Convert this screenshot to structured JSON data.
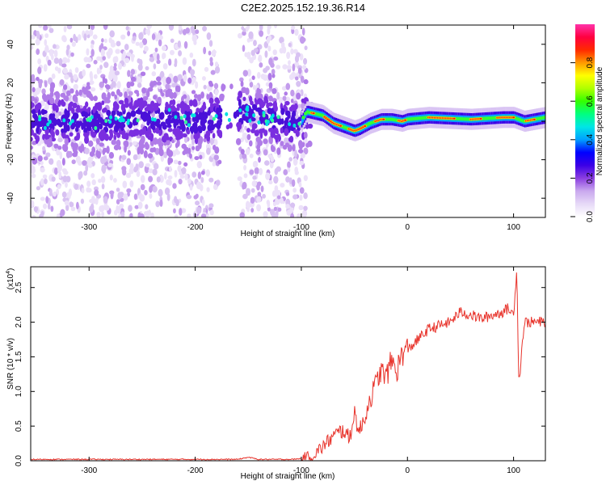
{
  "title": "C2E2.2025.152.19.36.R14",
  "chart_data": [
    {
      "type": "heatmap",
      "xlabel": "Height of straight line (km)",
      "ylabel": "Frequency (Hz)",
      "xlim": [
        -355,
        130
      ],
      "ylim": [
        -50,
        50
      ],
      "xticks": [
        -300,
        -200,
        -100,
        0,
        100
      ],
      "yticks": [
        -40,
        -20,
        0,
        20,
        40
      ],
      "colorbar": {
        "label": "Normalized spectral amplitude",
        "range": [
          0,
          1
        ],
        "ticks": [
          "0.0",
          "0.2",
          "0.4",
          "0.6",
          "0.8"
        ],
        "tick_values": [
          0.0,
          0.2,
          0.4,
          0.6,
          0.8
        ],
        "colors": [
          "#ffffff",
          "#e6d9f7",
          "#c9a8ee",
          "#8b3ee0",
          "#3b00e6",
          "#0000ff",
          "#00a0ff",
          "#00e6e6",
          "#00ff80",
          "#33ff00",
          "#b0ff00",
          "#ffff00",
          "#ff9900",
          "#ff2a00",
          "#ff0040",
          "#ff33aa"
        ]
      },
      "ridge": {
        "x": [
          -355,
          -300,
          -250,
          -200,
          -170,
          -160,
          -130,
          -100,
          -95,
          -80,
          -70,
          -60,
          -50,
          -45,
          -35,
          -25,
          -15,
          -5,
          0,
          20,
          60,
          90,
          100,
          110,
          130
        ],
        "freq": [
          0,
          0,
          1,
          0,
          2,
          5,
          1,
          0,
          5,
          3,
          -1,
          -3,
          -5,
          -4,
          -1,
          1,
          1,
          0,
          1,
          2,
          1,
          2,
          2,
          0,
          2
        ]
      }
    },
    {
      "type": "line",
      "xlabel": "Height of straight line (km)",
      "ylabel": "SNR (10 * v/v)",
      "scale_note": "(x10",
      "scale_exp": "4",
      "xlim": [
        -355,
        130
      ],
      "ylim": [
        0,
        2.8
      ],
      "xticks": [
        -300,
        -200,
        -100,
        0,
        100
      ],
      "yticks": [
        0.0,
        0.5,
        1.0,
        1.5,
        2.0,
        2.5
      ],
      "ytick_labels": [
        "0.0",
        "0.5",
        "1.0",
        "1.5",
        "2.0",
        "2.5"
      ],
      "color": "#e8342c",
      "series": [
        {
          "x": [
            -355,
            -300,
            -200,
            -160,
            -150,
            -140,
            -110,
            -100,
            -90,
            -80,
            -70,
            -60,
            -55,
            -50,
            -45,
            -40,
            -35,
            -30,
            -25,
            -20,
            -15,
            -10,
            -5,
            0,
            10,
            20,
            30,
            40,
            50,
            60,
            70,
            80,
            90,
            95,
            100,
            103,
            105,
            110,
            120,
            130
          ],
          "y": [
            0.02,
            0.02,
            0.02,
            0.02,
            0.05,
            0.02,
            0.02,
            0.03,
            0.06,
            0.2,
            0.35,
            0.45,
            0.3,
            0.7,
            0.4,
            0.65,
            0.9,
            1.1,
            1.3,
            1.2,
            1.45,
            1.3,
            1.55,
            1.6,
            1.75,
            1.9,
            1.95,
            2.0,
            2.15,
            2.1,
            2.05,
            2.1,
            2.15,
            2.2,
            2.1,
            2.8,
            1.1,
            2.0,
            2.0,
            2.0
          ]
        }
      ]
    }
  ]
}
